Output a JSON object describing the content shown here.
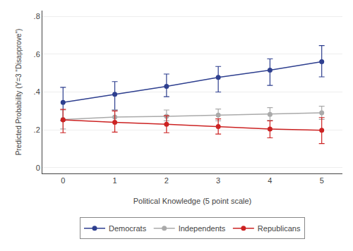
{
  "chart_data": {
    "type": "line",
    "x": [
      0,
      1,
      2,
      3,
      4,
      5
    ],
    "xlabel": "Political Knowledge (5 point scale)",
    "ylabel": "Predicted Probability (Y=3 \"Disapprove\")",
    "xlim": [
      -0.4,
      5.4
    ],
    "ylim": [
      -0.03,
      0.83
    ],
    "xticks": [
      0,
      1,
      2,
      3,
      4,
      5
    ],
    "yticks": [
      0,
      {
        "value": 0.2,
        "label": ".2"
      },
      {
        "value": 0.4,
        "label": ".4"
      },
      {
        "value": 0.6,
        "label": ".6"
      },
      {
        "value": 0.8,
        "label": ".8"
      }
    ],
    "grid": "y",
    "legend": "bottom",
    "marker": "circle",
    "line_style": "solid",
    "series": [
      {
        "name": "Democrats",
        "color": "#2e3f8f",
        "values": [
          0.345,
          0.388,
          0.43,
          0.477,
          0.515,
          0.56
        ],
        "ci_lo": [
          0.25,
          0.305,
          0.375,
          0.4,
          0.435,
          0.48
        ],
        "ci_hi": [
          0.425,
          0.455,
          0.495,
          0.535,
          0.575,
          0.645
        ]
      },
      {
        "name": "Independents",
        "color": "#aaaaaa",
        "values": [
          0.255,
          0.268,
          0.272,
          0.278,
          0.282,
          0.29
        ],
        "ci_lo": [
          0.205,
          0.24,
          0.248,
          0.248,
          0.25,
          0.255
        ],
        "ci_hi": [
          0.305,
          0.305,
          0.305,
          0.31,
          0.318,
          0.325
        ]
      },
      {
        "name": "Republicans",
        "color": "#cc2222",
        "values": [
          0.253,
          0.24,
          0.23,
          0.218,
          0.205,
          0.198
        ],
        "ci_lo": [
          0.185,
          0.188,
          0.185,
          0.178,
          0.158,
          0.128
        ],
        "ci_hi": [
          0.308,
          0.3,
          0.275,
          0.258,
          0.248,
          0.265
        ]
      }
    ]
  }
}
